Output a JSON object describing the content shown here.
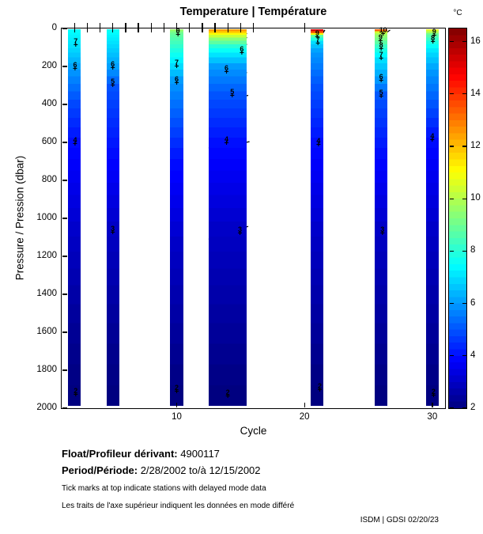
{
  "title": "Temperature | Température",
  "colorbar": {
    "unit": "°C",
    "colormap": "jet",
    "range_degC": [
      2,
      16.5
    ],
    "tick_values": [
      2,
      4,
      6,
      8,
      10,
      12,
      14,
      16
    ]
  },
  "chart_data": {
    "type": "heatmap",
    "title": "Temperature | Température",
    "xlabel": "Cycle",
    "ylabel": "Pressure / Pression (dbar)",
    "xlim": [
      1,
      31
    ],
    "ylim": [
      0,
      2000
    ],
    "xticks": [
      10,
      20,
      30
    ],
    "yticks": [
      0,
      200,
      400,
      600,
      800,
      1000,
      1200,
      1400,
      1600,
      1800,
      2000
    ],
    "top_delayed_mode_tick_cycles": [
      2,
      3,
      4,
      5,
      6,
      7,
      8,
      9,
      10,
      11,
      12,
      13,
      14,
      15,
      16,
      20
    ],
    "color_range_degC": [
      2,
      16.5
    ],
    "grid": false,
    "columns": [
      {
        "cycle_span": [
          1.5,
          2.5
        ],
        "profile_p_T": [
          [
            0,
            7.5
          ],
          [
            92,
            7
          ],
          [
            217,
            6
          ],
          [
            400,
            4.8
          ],
          [
            596,
            4
          ],
          [
            1100,
            3
          ],
          [
            1600,
            2.3
          ],
          [
            1917,
            2
          ],
          [
            2000,
            1.95
          ]
        ],
        "labels": [
          {
            "v": "7",
            "c": 2.1,
            "p": 75
          },
          {
            "v": "6",
            "c": 2.05,
            "p": 200
          },
          {
            "v": "4",
            "c": 2.05,
            "p": 596
          },
          {
            "v": "2",
            "c": 2.1,
            "p": 1917
          }
        ]
      },
      {
        "cycle_span": [
          4.5,
          5.5
        ],
        "profile_p_T": [
          [
            0,
            7.6
          ],
          [
            100,
            6.8
          ],
          [
            212,
            6
          ],
          [
            300,
            5
          ],
          [
            650,
            4
          ],
          [
            1062,
            3
          ],
          [
            1700,
            2.2
          ],
          [
            2000,
            1.95
          ]
        ],
        "labels": [
          {
            "v": "6",
            "c": 5,
            "p": 196
          },
          {
            "v": "5",
            "c": 5,
            "p": 287
          },
          {
            "v": "3",
            "c": 5,
            "p": 1062
          }
        ]
      },
      {
        "cycle_span": [
          9.5,
          10.5
        ],
        "profile_p_T": [
          [
            0,
            9.8
          ],
          [
            17,
            9
          ],
          [
            100,
            8
          ],
          [
            192,
            7
          ],
          [
            275,
            6
          ],
          [
            480,
            5
          ],
          [
            700,
            4
          ],
          [
            1150,
            3
          ],
          [
            1912,
            2
          ],
          [
            2000,
            1.95
          ]
        ],
        "labels": [
          {
            "v": "9",
            "c": 10.1,
            "p": 21
          },
          {
            "v": "7",
            "c": 10,
            "p": 186
          },
          {
            "v": "6",
            "c": 10,
            "p": 274
          },
          {
            "v": "2",
            "c": 10,
            "p": 1900
          }
        ]
      },
      {
        "cycle_span": [
          12.5,
          15.5
        ],
        "profile_p_T": [
          [
            0,
            12.8
          ],
          [
            25,
            11
          ],
          [
            50,
            9.5
          ],
          [
            90,
            8
          ],
          [
            140,
            7
          ],
          [
            200,
            6
          ],
          [
            350,
            5
          ],
          [
            604,
            4
          ],
          [
            1067,
            3
          ],
          [
            1921,
            2
          ],
          [
            2000,
            1.95
          ]
        ],
        "labels": [
          {
            "v": "6",
            "c": 15.1,
            "p": 117
          },
          {
            "v": "6",
            "c": 13.9,
            "p": 217
          },
          {
            "v": "5",
            "c": 14.35,
            "p": 342
          },
          {
            "v": "4",
            "c": 13.9,
            "p": 592
          },
          {
            "v": "3",
            "c": 14.95,
            "p": 1067
          },
          {
            "v": "2",
            "c": 14.0,
            "p": 1925
          }
        ]
      },
      {
        "cycle_span": [
          20.5,
          21.5
        ],
        "profile_p_T": [
          [
            0,
            16.2
          ],
          [
            12,
            14
          ],
          [
            25,
            11
          ],
          [
            33,
            9
          ],
          [
            50,
            8
          ],
          [
            67,
            7
          ],
          [
            120,
            6
          ],
          [
            300,
            5
          ],
          [
            600,
            4
          ],
          [
            1100,
            3
          ],
          [
            1900,
            2
          ],
          [
            2000,
            1.95
          ]
        ],
        "labels": [
          {
            "v": "9",
            "c": 21,
            "p": 33
          },
          {
            "v": "7",
            "c": 21.05,
            "p": 67
          },
          {
            "v": "4",
            "c": 21.1,
            "p": 600
          },
          {
            "v": "2",
            "c": 21.2,
            "p": 1892
          }
        ]
      },
      {
        "cycle_span": [
          25.5,
          26.5
        ],
        "profile_p_T": [
          [
            0,
            15
          ],
          [
            12,
            11
          ],
          [
            17,
            10
          ],
          [
            58,
            9
          ],
          [
            100,
            8
          ],
          [
            162,
            7
          ],
          [
            267,
            6
          ],
          [
            358,
            5
          ],
          [
            660,
            4
          ],
          [
            1070,
            3
          ],
          [
            1925,
            2
          ],
          [
            2000,
            1.95
          ]
        ],
        "labels": [
          {
            "v": "10",
            "c": 26.15,
            "p": 15
          },
          {
            "v": "9",
            "c": 25.95,
            "p": 55
          },
          {
            "v": "8",
            "c": 26,
            "p": 95
          },
          {
            "v": "7",
            "c": 26,
            "p": 145
          },
          {
            "v": "6",
            "c": 26,
            "p": 262
          },
          {
            "v": "5",
            "c": 26,
            "p": 345
          },
          {
            "v": "3",
            "c": 26.1,
            "p": 1067
          }
        ]
      },
      {
        "cycle_span": [
          29.5,
          30.5
        ],
        "profile_p_T": [
          [
            0,
            11
          ],
          [
            25,
            9
          ],
          [
            60,
            8
          ],
          [
            120,
            7
          ],
          [
            220,
            6
          ],
          [
            400,
            5
          ],
          [
            577,
            4
          ],
          [
            1080,
            3
          ],
          [
            1920,
            2
          ],
          [
            2000,
            1.95
          ]
        ],
        "labels": [
          {
            "v": "9",
            "c": 30.15,
            "p": 25
          },
          {
            "v": "8",
            "c": 30.05,
            "p": 60
          },
          {
            "v": "4",
            "c": 30,
            "p": 577
          },
          {
            "v": "2",
            "c": 30.1,
            "p": 1920
          }
        ]
      }
    ],
    "contour_lines": [
      {
        "points": [
          [
            12.7,
            28
          ],
          [
            13.4,
            8
          ],
          [
            14.1,
            32
          ],
          [
            14.9,
            10
          ],
          [
            15.5,
            28
          ]
        ]
      },
      {
        "points": [
          [
            12.8,
            55
          ],
          [
            13.5,
            32
          ],
          [
            14.3,
            58
          ],
          [
            15.1,
            28
          ],
          [
            15.5,
            50
          ]
        ]
      },
      {
        "points": [
          [
            13.0,
            18
          ],
          [
            13.7,
            52
          ],
          [
            14.5,
            14
          ],
          [
            15.2,
            48
          ]
        ]
      },
      {
        "points": [
          [
            12.7,
            85
          ],
          [
            13.4,
            70
          ],
          [
            14.2,
            92
          ],
          [
            15.0,
            66
          ],
          [
            15.5,
            85
          ]
        ]
      },
      {
        "points": [
          [
            13.1,
            108
          ],
          [
            13.9,
            122
          ],
          [
            14.7,
            98
          ],
          [
            15.4,
            113
          ]
        ]
      },
      {
        "points": [
          [
            13.1,
            95
          ],
          [
            13.5,
            135
          ],
          [
            13.2,
            168
          ],
          [
            14.0,
            150
          ],
          [
            14.8,
            122
          ],
          [
            15.45,
            110
          ]
        ]
      },
      {
        "points": [
          [
            12.6,
            240
          ],
          [
            13.3,
            258
          ],
          [
            14.2,
            252
          ],
          [
            15.5,
            232
          ]
        ]
      },
      {
        "points": [
          [
            12.55,
            370
          ],
          [
            13.3,
            388
          ],
          [
            14.5,
            370
          ],
          [
            15.6,
            352
          ]
        ]
      },
      {
        "points": [
          [
            12.5,
            628
          ],
          [
            13.2,
            635
          ],
          [
            14.5,
            615
          ],
          [
            15.7,
            596
          ]
        ]
      },
      {
        "points": [
          [
            12.5,
            1110
          ],
          [
            13.6,
            1098
          ],
          [
            14.8,
            1062
          ],
          [
            15.6,
            1042
          ]
        ]
      },
      {
        "points": [
          [
            12.6,
            1958
          ],
          [
            13.8,
            1952
          ],
          [
            15.4,
            1938
          ]
        ]
      },
      {
        "points": [
          [
            20.85,
            10
          ],
          [
            21.25,
            28
          ],
          [
            21.6,
            8
          ],
          [
            21.3,
            40
          ]
        ]
      },
      {
        "points": [
          [
            25.85,
            10
          ],
          [
            26.3,
            28
          ],
          [
            26.7,
            8
          ]
        ]
      }
    ]
  },
  "footer": {
    "float_label": "Float/Profileur dérivant:",
    "float_value": "4900117",
    "period_label": "Period/Période:",
    "period_value": "2/28/2002 to/à 12/15/2002",
    "note_en": "Tick marks at top indicate stations with delayed mode data",
    "note_fr": "Les traits de l'axe supérieur indiquent les données en mode différé",
    "credit": "ISDM | GDSI 02/20/23"
  }
}
